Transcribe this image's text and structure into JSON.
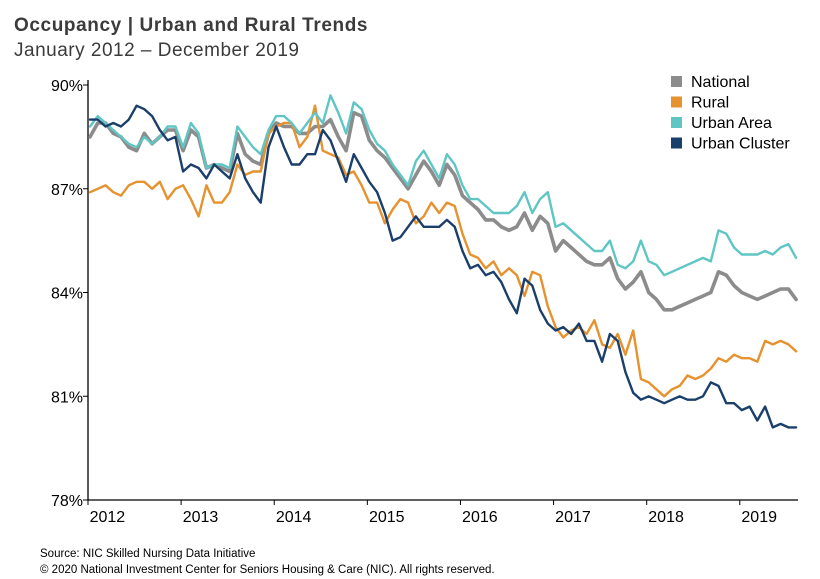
{
  "header": {
    "title": "Occupancy  | Urban and Rural  Trends",
    "subtitle": "January  2012 – December 2019"
  },
  "footer": {
    "source": "Source: NIC Skilled Nursing Data Initiative",
    "copyright": "© 2020 National Investment Center for Seniors Housing & Care (NIC).  All rights reserved."
  },
  "chart_data": {
    "type": "line",
    "title": "Occupancy  | Urban and Rural  Trends",
    "subtitle": "January  2012 – December 2019",
    "xlabel": "",
    "ylabel": "",
    "ylim": [
      78,
      90
    ],
    "yticks": [
      90,
      87,
      84,
      81,
      78
    ],
    "ytick_labels": [
      "90%",
      "87%",
      "84%",
      "81%",
      "78%"
    ],
    "xticks": [
      "2012",
      "2013",
      "2014",
      "2015",
      "2016",
      "2017",
      "2018",
      "2019"
    ],
    "x_start": "2012-01",
    "grid": false,
    "legend_position": "top-right",
    "series": [
      {
        "name": "National",
        "color": "#8c8c8c",
        "values": [
          88.5,
          88.9,
          88.9,
          88.6,
          88.5,
          88.2,
          88.1,
          88.6,
          88.3,
          88.5,
          88.7,
          88.7,
          88.1,
          88.7,
          88.5,
          87.6,
          87.7,
          87.6,
          87.5,
          88.6,
          88.0,
          87.8,
          87.7,
          88.6,
          88.9,
          88.8,
          88.8,
          88.6,
          88.6,
          88.8,
          88.8,
          89.0,
          88.5,
          88.1,
          89.2,
          89.1,
          88.4,
          88.1,
          87.9,
          87.6,
          87.3,
          87.0,
          87.4,
          87.8,
          87.5,
          87.1,
          87.7,
          87.4,
          86.8,
          86.6,
          86.4,
          86.1,
          86.1,
          85.9,
          85.8,
          85.9,
          86.3,
          85.8,
          86.2,
          86.0,
          85.2,
          85.5,
          85.3,
          85.1,
          84.9,
          84.8,
          84.8,
          85.0,
          84.4,
          84.1,
          84.3,
          84.6,
          84.0,
          83.8,
          83.5,
          83.5,
          83.6,
          83.7,
          83.8,
          83.9,
          84.0,
          84.6,
          84.5,
          84.2,
          84.0,
          83.9,
          83.8,
          83.9,
          84.0,
          84.1,
          84.1,
          83.8
        ]
      },
      {
        "name": "Rural",
        "color": "#e6922e",
        "values": [
          86.9,
          87.0,
          87.1,
          86.9,
          86.8,
          87.1,
          87.2,
          87.2,
          87.0,
          87.2,
          86.7,
          87.0,
          87.1,
          86.7,
          86.2,
          87.1,
          86.6,
          86.6,
          86.9,
          87.7,
          87.4,
          87.5,
          87.5,
          88.6,
          88.8,
          88.9,
          88.9,
          88.2,
          88.5,
          89.4,
          88.1,
          88.0,
          87.9,
          87.4,
          87.5,
          87.1,
          86.6,
          86.6,
          86.0,
          86.4,
          86.7,
          86.6,
          86.0,
          86.2,
          86.6,
          86.3,
          86.6,
          86.5,
          85.7,
          85.1,
          85.0,
          84.7,
          84.9,
          84.5,
          84.7,
          84.5,
          83.9,
          84.6,
          84.5,
          83.6,
          83.0,
          82.7,
          82.9,
          83.0,
          82.8,
          83.2,
          82.5,
          82.4,
          82.8,
          82.2,
          82.9,
          81.5,
          81.4,
          81.2,
          81.0,
          81.2,
          81.3,
          81.6,
          81.5,
          81.6,
          81.8,
          82.1,
          82.0,
          82.2,
          82.1,
          82.1,
          82.0,
          82.6,
          82.5,
          82.6,
          82.5,
          82.3
        ]
      },
      {
        "name": "Urban Area",
        "color": "#5fc6c4",
        "values": [
          88.8,
          89.1,
          88.9,
          88.7,
          88.5,
          88.3,
          88.2,
          88.5,
          88.3,
          88.5,
          88.8,
          88.8,
          88.2,
          88.9,
          88.6,
          87.6,
          87.7,
          87.7,
          87.6,
          88.8,
          88.5,
          88.2,
          88.0,
          88.7,
          89.1,
          89.1,
          88.9,
          88.6,
          88.9,
          89.2,
          88.9,
          89.7,
          89.2,
          88.6,
          89.5,
          89.3,
          88.7,
          88.3,
          88.1,
          87.7,
          87.4,
          87.1,
          87.8,
          88.1,
          87.7,
          87.3,
          88.0,
          87.7,
          87.1,
          86.7,
          86.7,
          86.5,
          86.3,
          86.3,
          86.3,
          86.5,
          86.9,
          86.3,
          86.7,
          86.9,
          85.9,
          86.0,
          85.8,
          85.6,
          85.4,
          85.2,
          85.2,
          85.5,
          84.8,
          84.7,
          84.9,
          85.5,
          84.9,
          84.8,
          84.5,
          84.6,
          84.7,
          84.8,
          84.9,
          85.0,
          84.9,
          85.8,
          85.7,
          85.3,
          85.1,
          85.1,
          85.1,
          85.2,
          85.1,
          85.3,
          85.4,
          85.0
        ]
      },
      {
        "name": "Urban Cluster",
        "color": "#1b3f6b",
        "values": [
          89.0,
          89.0,
          88.8,
          88.9,
          88.8,
          89.0,
          89.4,
          89.3,
          89.1,
          88.7,
          88.4,
          88.5,
          87.5,
          87.7,
          87.6,
          87.3,
          87.7,
          87.5,
          87.3,
          88.0,
          87.3,
          86.9,
          86.6,
          88.2,
          88.8,
          88.2,
          87.7,
          87.7,
          88.0,
          88.0,
          88.7,
          88.4,
          87.8,
          87.2,
          88.0,
          87.6,
          87.2,
          86.9,
          86.3,
          85.5,
          85.6,
          85.9,
          86.2,
          85.9,
          85.9,
          85.9,
          86.1,
          85.9,
          85.2,
          84.7,
          84.8,
          84.5,
          84.6,
          84.3,
          83.8,
          83.4,
          84.4,
          84.2,
          83.5,
          83.1,
          82.9,
          83.0,
          82.8,
          83.1,
          82.6,
          82.6,
          82.0,
          82.8,
          82.6,
          81.7,
          81.1,
          80.9,
          81.0,
          80.9,
          80.8,
          80.9,
          81.0,
          80.9,
          80.9,
          81.0,
          81.4,
          81.3,
          80.8,
          80.8,
          80.6,
          80.7,
          80.3,
          80.7,
          80.1,
          80.2,
          80.1,
          80.1
        ]
      }
    ]
  }
}
